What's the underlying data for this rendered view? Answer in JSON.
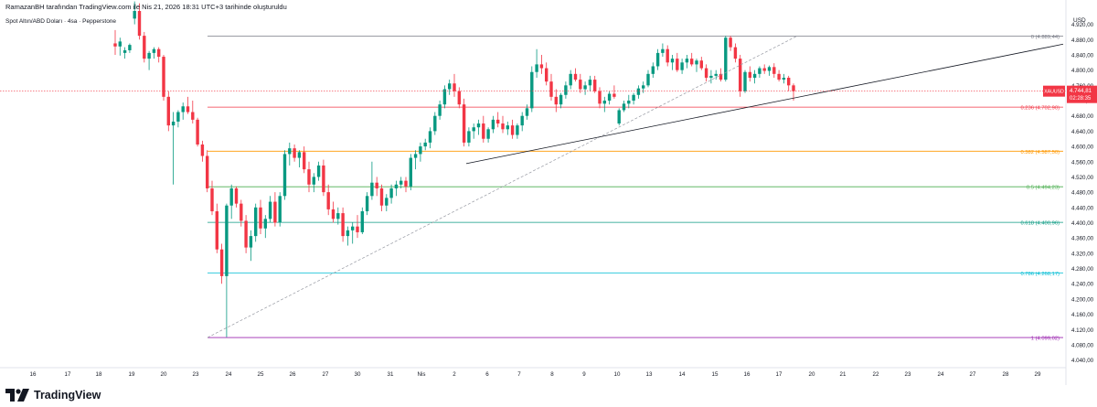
{
  "header": {
    "attribution": "RamazanBH tarafından TradingView.com ile Nis 21, 2026 18:31 UTC+3 tarihinde oluşturuldu",
    "symbol": "Spot Altın/ABD Doları · 4sa · Pepperstone"
  },
  "logo": {
    "text": "TradingView"
  },
  "price_axis": {
    "currency": "USD",
    "ticks": [
      "4.920,00",
      "4.880,00",
      "4.840,00",
      "4.800,00",
      "4.760,00",
      "4.720,00",
      "4.680,00",
      "4.640,00",
      "4.600,00",
      "4.560,00",
      "4.520,00",
      "4.480,00",
      "4.440,00",
      "4.400,00",
      "4.360,00",
      "4.320,00",
      "4.280,00",
      "4.240,00",
      "4.200,00",
      "4.160,00",
      "4.120,00",
      "4.080,00",
      "4.040,00"
    ]
  },
  "current_price": {
    "symbol": "XAUUSD",
    "price": "4.744,81",
    "countdown": "02:28:35",
    "value": 4744.81,
    "color": "#f23645"
  },
  "time_axis": {
    "labels": [
      "16",
      "17",
      "18",
      "19",
      "20",
      "23",
      "24",
      "25",
      "26",
      "27",
      "30",
      "31",
      "Nis",
      "2",
      "6",
      "7",
      "8",
      "9",
      "10",
      "13",
      "14",
      "15",
      "16",
      "17",
      "20",
      "21",
      "22",
      "23",
      "24",
      "27",
      "28",
      "29"
    ]
  },
  "chart_data": {
    "type": "candlestick",
    "title": "Spot Altın/ABD Doları · 4sa · Pepperstone",
    "ylim": [
      4020,
      4955
    ],
    "up_color": "#089981",
    "down_color": "#f23645",
    "candles": [
      {
        "o": 4870,
        "h": 4905,
        "l": 4840,
        "c": 4862
      },
      {
        "o": 4862,
        "h": 4885,
        "l": 4838,
        "c": 4875
      },
      {
        "o": 4845,
        "h": 4860,
        "l": 4830,
        "c": 4852
      },
      {
        "o": 4852,
        "h": 4870,
        "l": 4845,
        "c": 4866
      },
      {
        "o": 4935,
        "h": 4980,
        "l": 4920,
        "c": 4955
      },
      {
        "o": 4955,
        "h": 4975,
        "l": 4880,
        "c": 4890
      },
      {
        "o": 4890,
        "h": 4900,
        "l": 4820,
        "c": 4830
      },
      {
        "o": 4830,
        "h": 4850,
        "l": 4800,
        "c": 4845
      },
      {
        "o": 4845,
        "h": 4860,
        "l": 4830,
        "c": 4855
      },
      {
        "o": 4855,
        "h": 4860,
        "l": 4820,
        "c": 4835
      },
      {
        "o": 4835,
        "h": 4840,
        "l": 4720,
        "c": 4730
      },
      {
        "o": 4730,
        "h": 4745,
        "l": 4640,
        "c": 4655
      },
      {
        "o": 4655,
        "h": 4690,
        "l": 4500,
        "c": 4665
      },
      {
        "o": 4665,
        "h": 4695,
        "l": 4650,
        "c": 4690
      },
      {
        "o": 4690,
        "h": 4715,
        "l": 4670,
        "c": 4705
      },
      {
        "o": 4705,
        "h": 4730,
        "l": 4685,
        "c": 4690
      },
      {
        "o": 4690,
        "h": 4720,
        "l": 4660,
        "c": 4670
      },
      {
        "o": 4670,
        "h": 4675,
        "l": 4600,
        "c": 4605
      },
      {
        "o": 4605,
        "h": 4615,
        "l": 4560,
        "c": 4575
      },
      {
        "o": 4575,
        "h": 4590,
        "l": 4480,
        "c": 4490
      },
      {
        "o": 4490,
        "h": 4510,
        "l": 4420,
        "c": 4430
      },
      {
        "o": 4430,
        "h": 4450,
        "l": 4320,
        "c": 4330
      },
      {
        "o": 4330,
        "h": 4345,
        "l": 4240,
        "c": 4260
      },
      {
        "o": 4260,
        "h": 4450,
        "l": 4100,
        "c": 4445
      },
      {
        "o": 4445,
        "h": 4500,
        "l": 4410,
        "c": 4490
      },
      {
        "o": 4490,
        "h": 4495,
        "l": 4440,
        "c": 4450
      },
      {
        "o": 4450,
        "h": 4460,
        "l": 4390,
        "c": 4405
      },
      {
        "o": 4405,
        "h": 4420,
        "l": 4320,
        "c": 4335
      },
      {
        "o": 4335,
        "h": 4380,
        "l": 4300,
        "c": 4365
      },
      {
        "o": 4365,
        "h": 4450,
        "l": 4350,
        "c": 4440
      },
      {
        "o": 4440,
        "h": 4460,
        "l": 4370,
        "c": 4385
      },
      {
        "o": 4385,
        "h": 4420,
        "l": 4360,
        "c": 4410
      },
      {
        "o": 4410,
        "h": 4470,
        "l": 4400,
        "c": 4455
      },
      {
        "o": 4455,
        "h": 4480,
        "l": 4390,
        "c": 4400
      },
      {
        "o": 4400,
        "h": 4480,
        "l": 4390,
        "c": 4470
      },
      {
        "o": 4470,
        "h": 4590,
        "l": 4460,
        "c": 4580
      },
      {
        "o": 4580,
        "h": 4610,
        "l": 4550,
        "c": 4595
      },
      {
        "o": 4595,
        "h": 4605,
        "l": 4560,
        "c": 4570
      },
      {
        "o": 4570,
        "h": 4590,
        "l": 4545,
        "c": 4585
      },
      {
        "o": 4585,
        "h": 4600,
        "l": 4530,
        "c": 4540
      },
      {
        "o": 4540,
        "h": 4560,
        "l": 4480,
        "c": 4500
      },
      {
        "o": 4500,
        "h": 4530,
        "l": 4480,
        "c": 4520
      },
      {
        "o": 4520,
        "h": 4560,
        "l": 4510,
        "c": 4550
      },
      {
        "o": 4550,
        "h": 4565,
        "l": 4470,
        "c": 4480
      },
      {
        "o": 4480,
        "h": 4500,
        "l": 4420,
        "c": 4435
      },
      {
        "o": 4435,
        "h": 4455,
        "l": 4400,
        "c": 4410
      },
      {
        "o": 4410,
        "h": 4440,
        "l": 4395,
        "c": 4425
      },
      {
        "o": 4425,
        "h": 4440,
        "l": 4350,
        "c": 4365
      },
      {
        "o": 4365,
        "h": 4390,
        "l": 4340,
        "c": 4380
      },
      {
        "o": 4380,
        "h": 4400,
        "l": 4345,
        "c": 4390
      },
      {
        "o": 4390,
        "h": 4420,
        "l": 4360,
        "c": 4375
      },
      {
        "o": 4375,
        "h": 4440,
        "l": 4370,
        "c": 4430
      },
      {
        "o": 4430,
        "h": 4480,
        "l": 4420,
        "c": 4470
      },
      {
        "o": 4470,
        "h": 4560,
        "l": 4460,
        "c": 4505
      },
      {
        "o": 4505,
        "h": 4520,
        "l": 4470,
        "c": 4490
      },
      {
        "o": 4490,
        "h": 4500,
        "l": 4430,
        "c": 4445
      },
      {
        "o": 4445,
        "h": 4475,
        "l": 4430,
        "c": 4465
      },
      {
        "o": 4465,
        "h": 4500,
        "l": 4450,
        "c": 4490
      },
      {
        "o": 4490,
        "h": 4510,
        "l": 4470,
        "c": 4500
      },
      {
        "o": 4500,
        "h": 4520,
        "l": 4490,
        "c": 4510
      },
      {
        "o": 4510,
        "h": 4520,
        "l": 4480,
        "c": 4495
      },
      {
        "o": 4495,
        "h": 4580,
        "l": 4485,
        "c": 4570
      },
      {
        "o": 4570,
        "h": 4590,
        "l": 4540,
        "c": 4580
      },
      {
        "o": 4580,
        "h": 4610,
        "l": 4560,
        "c": 4600
      },
      {
        "o": 4600,
        "h": 4620,
        "l": 4590,
        "c": 4610
      },
      {
        "o": 4610,
        "h": 4650,
        "l": 4595,
        "c": 4640
      },
      {
        "o": 4640,
        "h": 4690,
        "l": 4630,
        "c": 4680
      },
      {
        "o": 4680,
        "h": 4720,
        "l": 4670,
        "c": 4710
      },
      {
        "o": 4710,
        "h": 4760,
        "l": 4700,
        "c": 4750
      },
      {
        "o": 4750,
        "h": 4775,
        "l": 4735,
        "c": 4765
      },
      {
        "o": 4765,
        "h": 4790,
        "l": 4730,
        "c": 4745
      },
      {
        "o": 4745,
        "h": 4755,
        "l": 4700,
        "c": 4710
      },
      {
        "o": 4710,
        "h": 4725,
        "l": 4600,
        "c": 4610
      },
      {
        "o": 4610,
        "h": 4650,
        "l": 4600,
        "c": 4640
      },
      {
        "o": 4640,
        "h": 4660,
        "l": 4620,
        "c": 4650
      },
      {
        "o": 4650,
        "h": 4670,
        "l": 4630,
        "c": 4660
      },
      {
        "o": 4660,
        "h": 4680,
        "l": 4610,
        "c": 4620
      },
      {
        "o": 4620,
        "h": 4650,
        "l": 4610,
        "c": 4645
      },
      {
        "o": 4645,
        "h": 4680,
        "l": 4635,
        "c": 4670
      },
      {
        "o": 4670,
        "h": 4690,
        "l": 4650,
        "c": 4660
      },
      {
        "o": 4660,
        "h": 4680,
        "l": 4635,
        "c": 4645
      },
      {
        "o": 4645,
        "h": 4665,
        "l": 4630,
        "c": 4655
      },
      {
        "o": 4655,
        "h": 4670,
        "l": 4620,
        "c": 4630
      },
      {
        "o": 4630,
        "h": 4660,
        "l": 4620,
        "c": 4655
      },
      {
        "o": 4655,
        "h": 4690,
        "l": 4640,
        "c": 4680
      },
      {
        "o": 4680,
        "h": 4710,
        "l": 4670,
        "c": 4700
      },
      {
        "o": 4700,
        "h": 4810,
        "l": 4690,
        "c": 4795
      },
      {
        "o": 4795,
        "h": 4855,
        "l": 4780,
        "c": 4815
      },
      {
        "o": 4815,
        "h": 4840,
        "l": 4790,
        "c": 4805
      },
      {
        "o": 4805,
        "h": 4820,
        "l": 4760,
        "c": 4770
      },
      {
        "o": 4770,
        "h": 4790,
        "l": 4720,
        "c": 4730
      },
      {
        "o": 4730,
        "h": 4750,
        "l": 4690,
        "c": 4710
      },
      {
        "o": 4710,
        "h": 4740,
        "l": 4700,
        "c": 4735
      },
      {
        "o": 4735,
        "h": 4770,
        "l": 4725,
        "c": 4760
      },
      {
        "o": 4760,
        "h": 4800,
        "l": 4750,
        "c": 4790
      },
      {
        "o": 4790,
        "h": 4805,
        "l": 4770,
        "c": 4775
      },
      {
        "o": 4775,
        "h": 4790,
        "l": 4740,
        "c": 4750
      },
      {
        "o": 4750,
        "h": 4770,
        "l": 4735,
        "c": 4760
      },
      {
        "o": 4760,
        "h": 4785,
        "l": 4745,
        "c": 4775
      },
      {
        "o": 4775,
        "h": 4785,
        "l": 4740,
        "c": 4745
      },
      {
        "o": 4745,
        "h": 4755,
        "l": 4700,
        "c": 4712
      },
      {
        "o": 4712,
        "h": 4730,
        "l": 4690,
        "c": 4720
      },
      {
        "o": 4720,
        "h": 4745,
        "l": 4710,
        "c": 4738
      },
      {
        "o": 4738,
        "h": 4760,
        "l": 4725,
        "c": 4730
      },
      {
        "o": 4660,
        "h": 4700,
        "l": 4655,
        "c": 4695
      },
      {
        "o": 4695,
        "h": 4720,
        "l": 4690,
        "c": 4712
      },
      {
        "o": 4712,
        "h": 4735,
        "l": 4700,
        "c": 4720
      },
      {
        "o": 4720,
        "h": 4740,
        "l": 4710,
        "c": 4735
      },
      {
        "o": 4735,
        "h": 4760,
        "l": 4725,
        "c": 4752
      },
      {
        "o": 4752,
        "h": 4770,
        "l": 4740,
        "c": 4760
      },
      {
        "o": 4760,
        "h": 4800,
        "l": 4755,
        "c": 4790
      },
      {
        "o": 4790,
        "h": 4820,
        "l": 4780,
        "c": 4810
      },
      {
        "o": 4810,
        "h": 4855,
        "l": 4800,
        "c": 4845
      },
      {
        "o": 4845,
        "h": 4870,
        "l": 4835,
        "c": 4855
      },
      {
        "o": 4855,
        "h": 4865,
        "l": 4810,
        "c": 4820
      },
      {
        "o": 4820,
        "h": 4840,
        "l": 4800,
        "c": 4830
      },
      {
        "o": 4830,
        "h": 4845,
        "l": 4795,
        "c": 4800
      },
      {
        "o": 4800,
        "h": 4830,
        "l": 4790,
        "c": 4820
      },
      {
        "o": 4820,
        "h": 4840,
        "l": 4805,
        "c": 4830
      },
      {
        "o": 4830,
        "h": 4845,
        "l": 4810,
        "c": 4815
      },
      {
        "o": 4815,
        "h": 4830,
        "l": 4795,
        "c": 4825
      },
      {
        "o": 4825,
        "h": 4835,
        "l": 4800,
        "c": 4805
      },
      {
        "o": 4805,
        "h": 4815,
        "l": 4770,
        "c": 4780
      },
      {
        "o": 4780,
        "h": 4800,
        "l": 4765,
        "c": 4785
      },
      {
        "o": 4785,
        "h": 4800,
        "l": 4775,
        "c": 4790
      },
      {
        "o": 4790,
        "h": 4805,
        "l": 4770,
        "c": 4775
      },
      {
        "o": 4775,
        "h": 4890,
        "l": 4770,
        "c": 4885
      },
      {
        "o": 4885,
        "h": 4890,
        "l": 4850,
        "c": 4860
      },
      {
        "o": 4860,
        "h": 4870,
        "l": 4820,
        "c": 4830
      },
      {
        "o": 4830,
        "h": 4840,
        "l": 4730,
        "c": 4745
      },
      {
        "o": 4745,
        "h": 4800,
        "l": 4740,
        "c": 4795
      },
      {
        "o": 4795,
        "h": 4810,
        "l": 4770,
        "c": 4780
      },
      {
        "o": 4780,
        "h": 4800,
        "l": 4765,
        "c": 4790
      },
      {
        "o": 4790,
        "h": 4810,
        "l": 4780,
        "c": 4805
      },
      {
        "o": 4805,
        "h": 4815,
        "l": 4790,
        "c": 4798
      },
      {
        "o": 4798,
        "h": 4812,
        "l": 4785,
        "c": 4808
      },
      {
        "o": 4808,
        "h": 4818,
        "l": 4780,
        "c": 4790
      },
      {
        "o": 4790,
        "h": 4800,
        "l": 4770,
        "c": 4775
      },
      {
        "o": 4775,
        "h": 4790,
        "l": 4765,
        "c": 4780
      },
      {
        "o": 4780,
        "h": 4785,
        "l": 4745,
        "c": 4760
      },
      {
        "o": 4760,
        "h": 4765,
        "l": 4720,
        "c": 4745
      }
    ],
    "fibonacci": [
      {
        "level": 0,
        "price": 4889.44,
        "label": "0 (4.889,44)",
        "color": "#787b86"
      },
      {
        "level": 0.236,
        "price": 4702.9,
        "label": "0.236 (4.702,90)",
        "color": "#f23645"
      },
      {
        "level": 0.382,
        "price": 4587.5,
        "label": "0.382 (4.587,50)",
        "color": "#ff9800"
      },
      {
        "level": 0.5,
        "price": 4494.23,
        "label": "0.5 (4.494,23)",
        "color": "#4caf50"
      },
      {
        "level": 0.618,
        "price": 4400.96,
        "label": "0.618 (4.400,96)",
        "color": "#089981"
      },
      {
        "level": 0.786,
        "price": 4268.17,
        "label": "0.786 (4.268,17)",
        "color": "#00bcd4"
      },
      {
        "level": 1,
        "price": 4099.02,
        "label": "1 (4.099,02)",
        "color": "#9c27b0"
      }
    ],
    "trendline": {
      "from_price": 4555,
      "to_price": 4868,
      "color": "#131722"
    },
    "fib_diagonal": {
      "from_price": 4099.02,
      "to_price": 4889.44
    }
  }
}
